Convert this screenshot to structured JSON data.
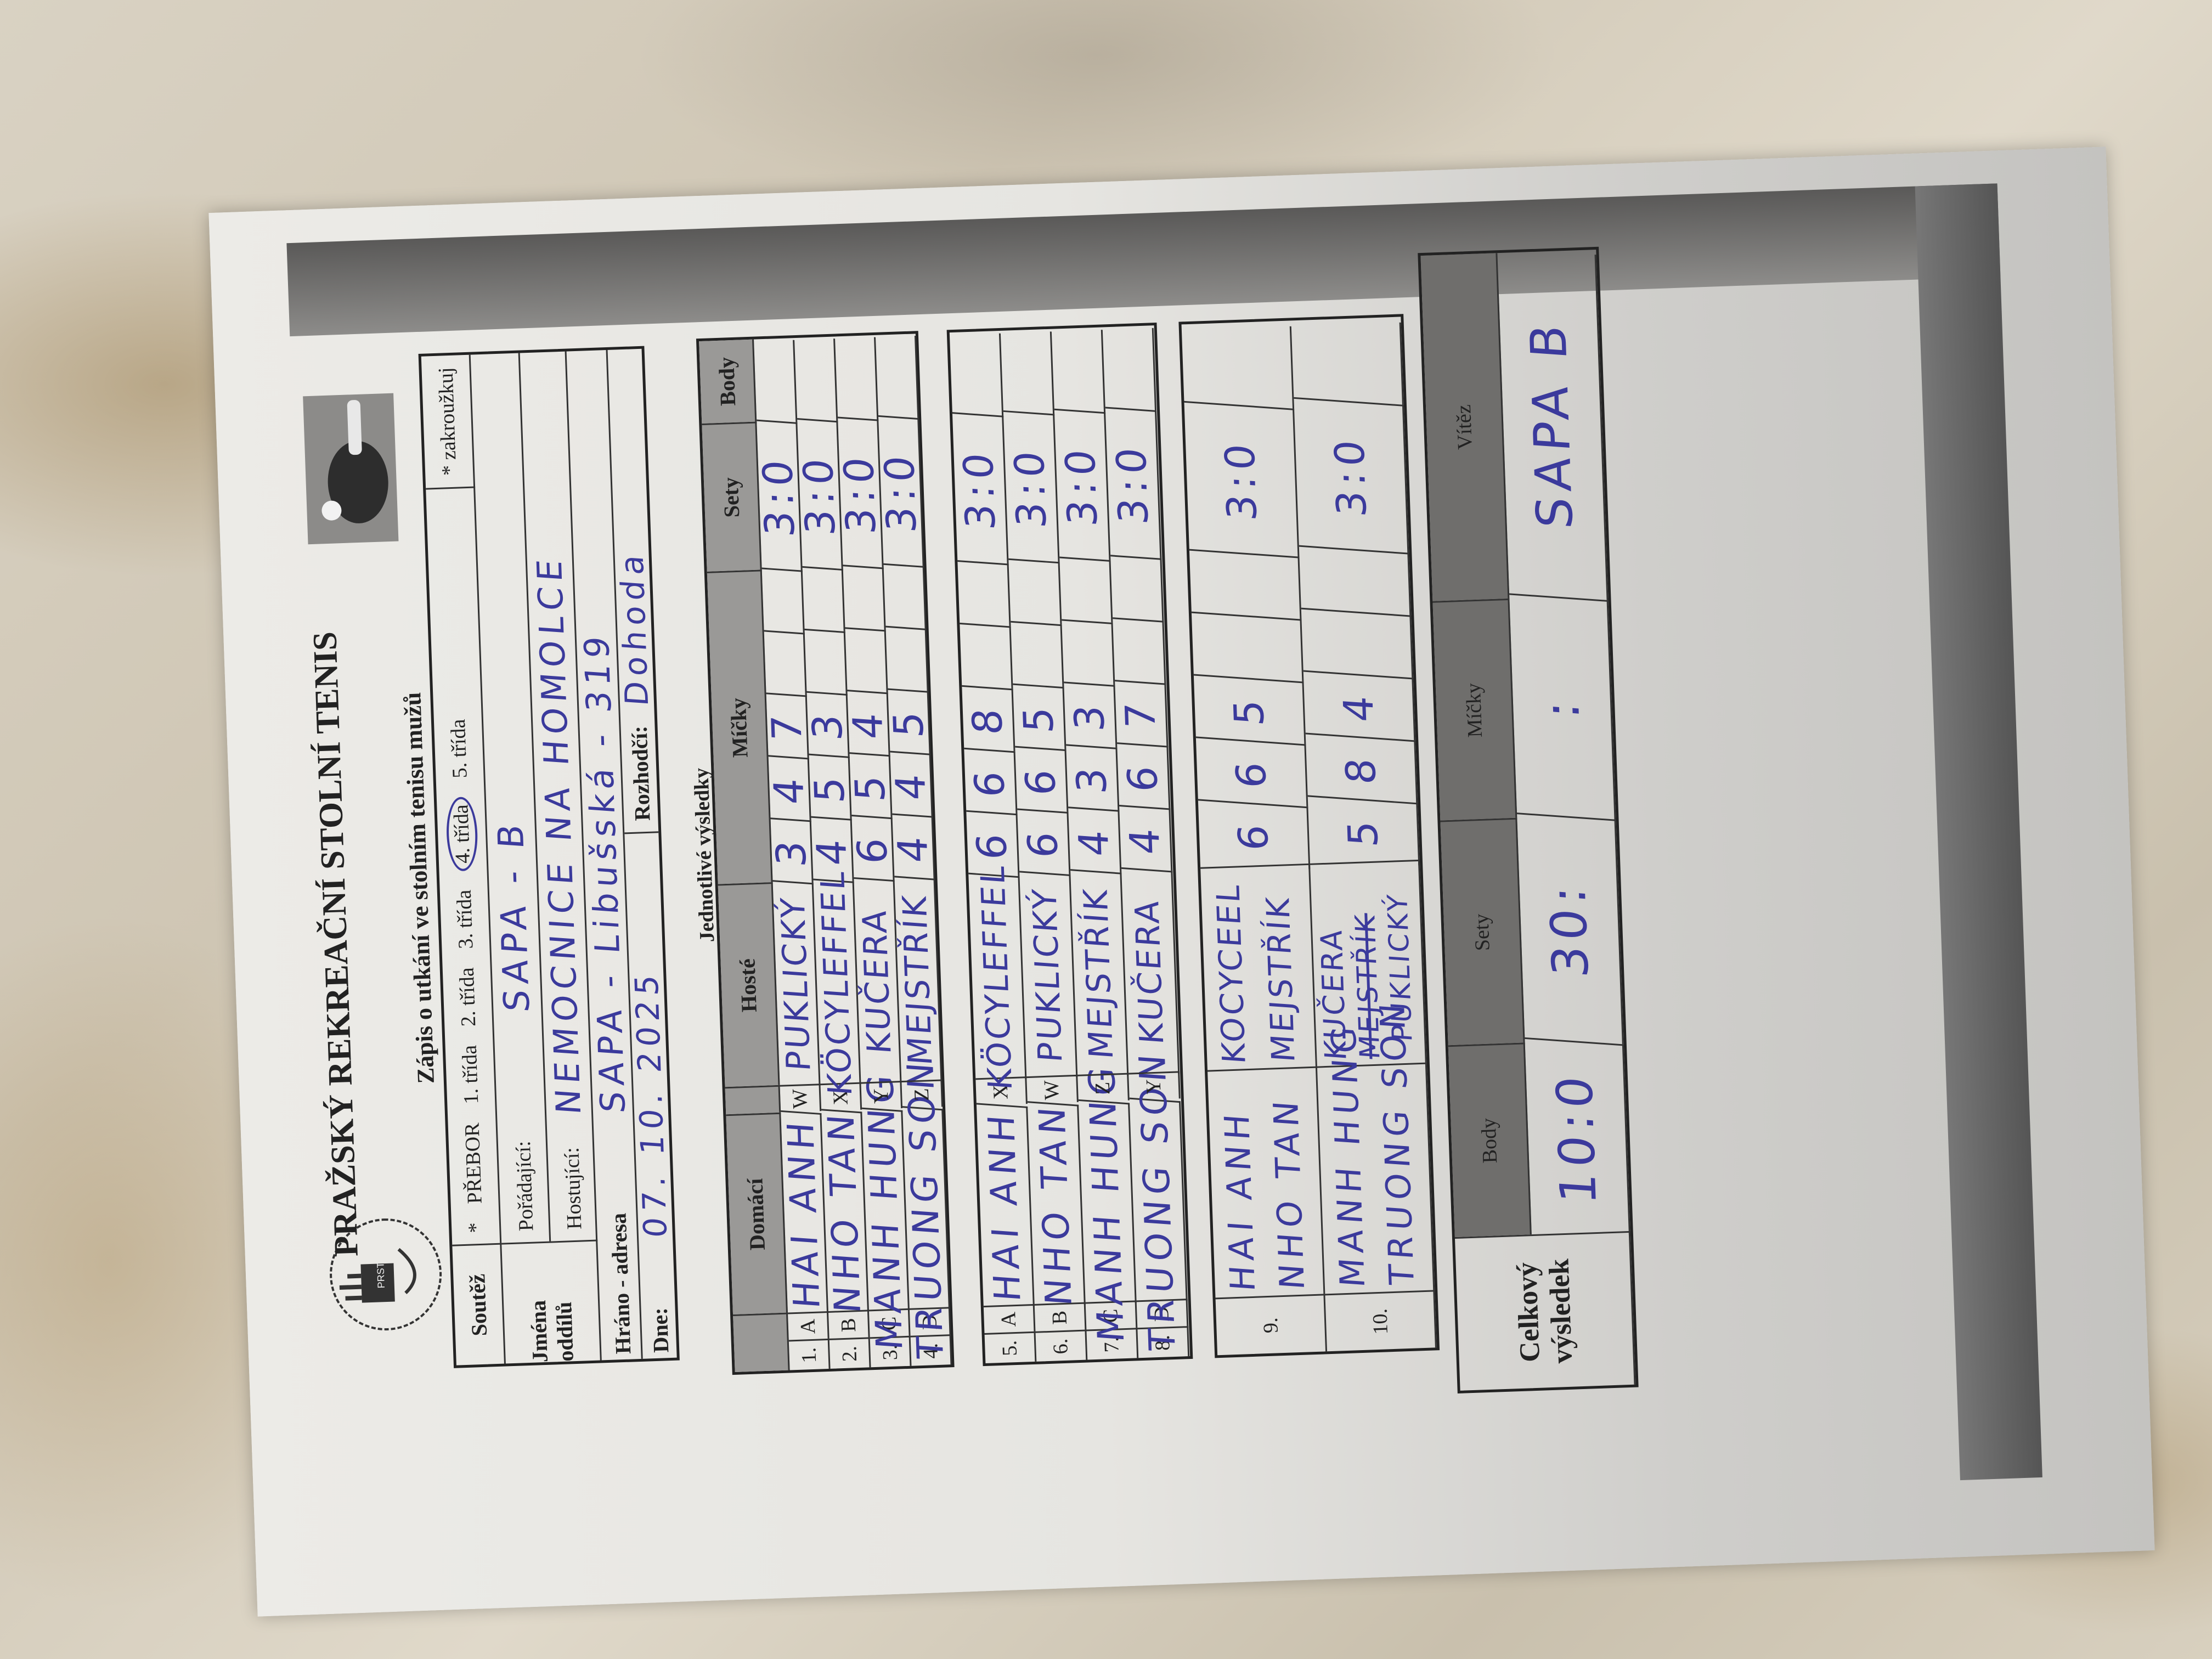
{
  "header": {
    "title": "PRAŽSKÝ REKREAČNÍ STOLNÍ TENIS",
    "subtitle": "Zápis o utkání ve stolním tenisu mužů",
    "logo_text": "PRAŽSKÝ REKREAČNÍ STOLNÍ TENIS",
    "logo_abbr": "PRST"
  },
  "info": {
    "competition_label": "Soutěž",
    "star": "*",
    "options": [
      "PŘEBOR",
      "1. třída",
      "2. třída",
      "3. třída",
      "4. třída",
      "5. třída"
    ],
    "selected_option": "4. třída",
    "note": "* zakroužkuj",
    "teams_label": "Jména oddílů",
    "organizer_label": "Pořádající:",
    "organizer": "SAPA - B",
    "host_label": "Hostující:",
    "host": "NEMOCNICE NA HOMOLCE",
    "venue_label": "Hráno - adresa",
    "venue": "SAPA - Libušská - 319",
    "date_label": "Dne:",
    "date": "07. 10. 2025",
    "referee_label": "Rozhodčí:",
    "referee": "Dohoda"
  },
  "singles": {
    "section_label": "Jednotlivé výsledky",
    "columns": {
      "home": "Domácí",
      "guest": "Hosté",
      "balls": "Míčky",
      "sets": "Sety",
      "points": "Body"
    },
    "matches": [
      {
        "no": "1.",
        "home_code": "A",
        "home": "HAI ANH",
        "guest_code": "W",
        "guest": "PUKLICKÝ",
        "balls": [
          "3",
          "4",
          "7",
          "",
          ""
        ],
        "sets": "3:0",
        "points": ""
      },
      {
        "no": "2.",
        "home_code": "B",
        "home": "NHO TAN",
        "guest_code": "X",
        "guest": "KÖCYLEFFEL",
        "balls": [
          "4",
          "5",
          "3",
          "",
          ""
        ],
        "sets": "3:0",
        "points": ""
      },
      {
        "no": "3.",
        "home_code": "C",
        "home": "MANH HUNG",
        "guest_code": "Y",
        "guest": "KUČERA",
        "balls": [
          "6",
          "5",
          "4",
          "",
          ""
        ],
        "sets": "3:0",
        "points": ""
      },
      {
        "no": "4.",
        "home_code": "D",
        "home": "TRUONG SON",
        "guest_code": "Z",
        "guest": "MEJSTŘÍK",
        "balls": [
          "4",
          "4",
          "5",
          "",
          ""
        ],
        "sets": "3:0",
        "points": ""
      },
      {
        "no": "5.",
        "home_code": "A",
        "home": "HAI ANH",
        "guest_code": "X",
        "guest": "KÖCYLEFFEL",
        "balls": [
          "6",
          "6",
          "8",
          "",
          ""
        ],
        "sets": "3:0",
        "points": ""
      },
      {
        "no": "6.",
        "home_code": "B",
        "home": "NHO TAN",
        "guest_code": "W",
        "guest": "PUKLICKÝ",
        "balls": [
          "6",
          "6",
          "5",
          "",
          ""
        ],
        "sets": "3:0",
        "points": ""
      },
      {
        "no": "7.",
        "home_code": "C",
        "home": "MANH HUNG",
        "guest_code": "Z",
        "guest": "MEJSTŘÍK",
        "balls": [
          "4",
          "3",
          "3",
          "",
          ""
        ],
        "sets": "3:0",
        "points": ""
      },
      {
        "no": "8.",
        "home_code": "D",
        "home": "TRUONG SON",
        "guest_code": "Y",
        "guest": "KUČERA",
        "balls": [
          "4",
          "6",
          "7",
          "",
          ""
        ],
        "sets": "3:0",
        "points": ""
      }
    ]
  },
  "doubles": [
    {
      "no": "9.",
      "home": [
        "HAI ANH",
        "NHO TAN"
      ],
      "guest": [
        "KOCYCEEL",
        "MEJSTŘÍK"
      ],
      "guest_struck": "",
      "balls": [
        "6",
        "6",
        "5",
        "",
        ""
      ],
      "sets": "3:0",
      "points": ""
    },
    {
      "no": "10.",
      "home": [
        "MANH HUNG",
        "TRUONG SON"
      ],
      "guest": [
        "KUČERA",
        "PUKLICKÝ"
      ],
      "guest_struck": "MEJSTŘÍK",
      "balls": [
        "5",
        "8",
        "4",
        "",
        ""
      ],
      "sets": "3:0",
      "points": ""
    }
  ],
  "totals": {
    "label": "Celkový výsledek",
    "columns": {
      "points": "Body",
      "sets": "Sety",
      "balls": "Míčky",
      "winner": "Vítěz"
    },
    "points": "10:0",
    "sets": "30:",
    "balls": ":",
    "winner": "SAPA B"
  },
  "colors": {
    "ink": "#3b3a9c",
    "paper": "#e9e8e4",
    "header_fill": "#9a9997",
    "marble": "#d5cdbd"
  }
}
